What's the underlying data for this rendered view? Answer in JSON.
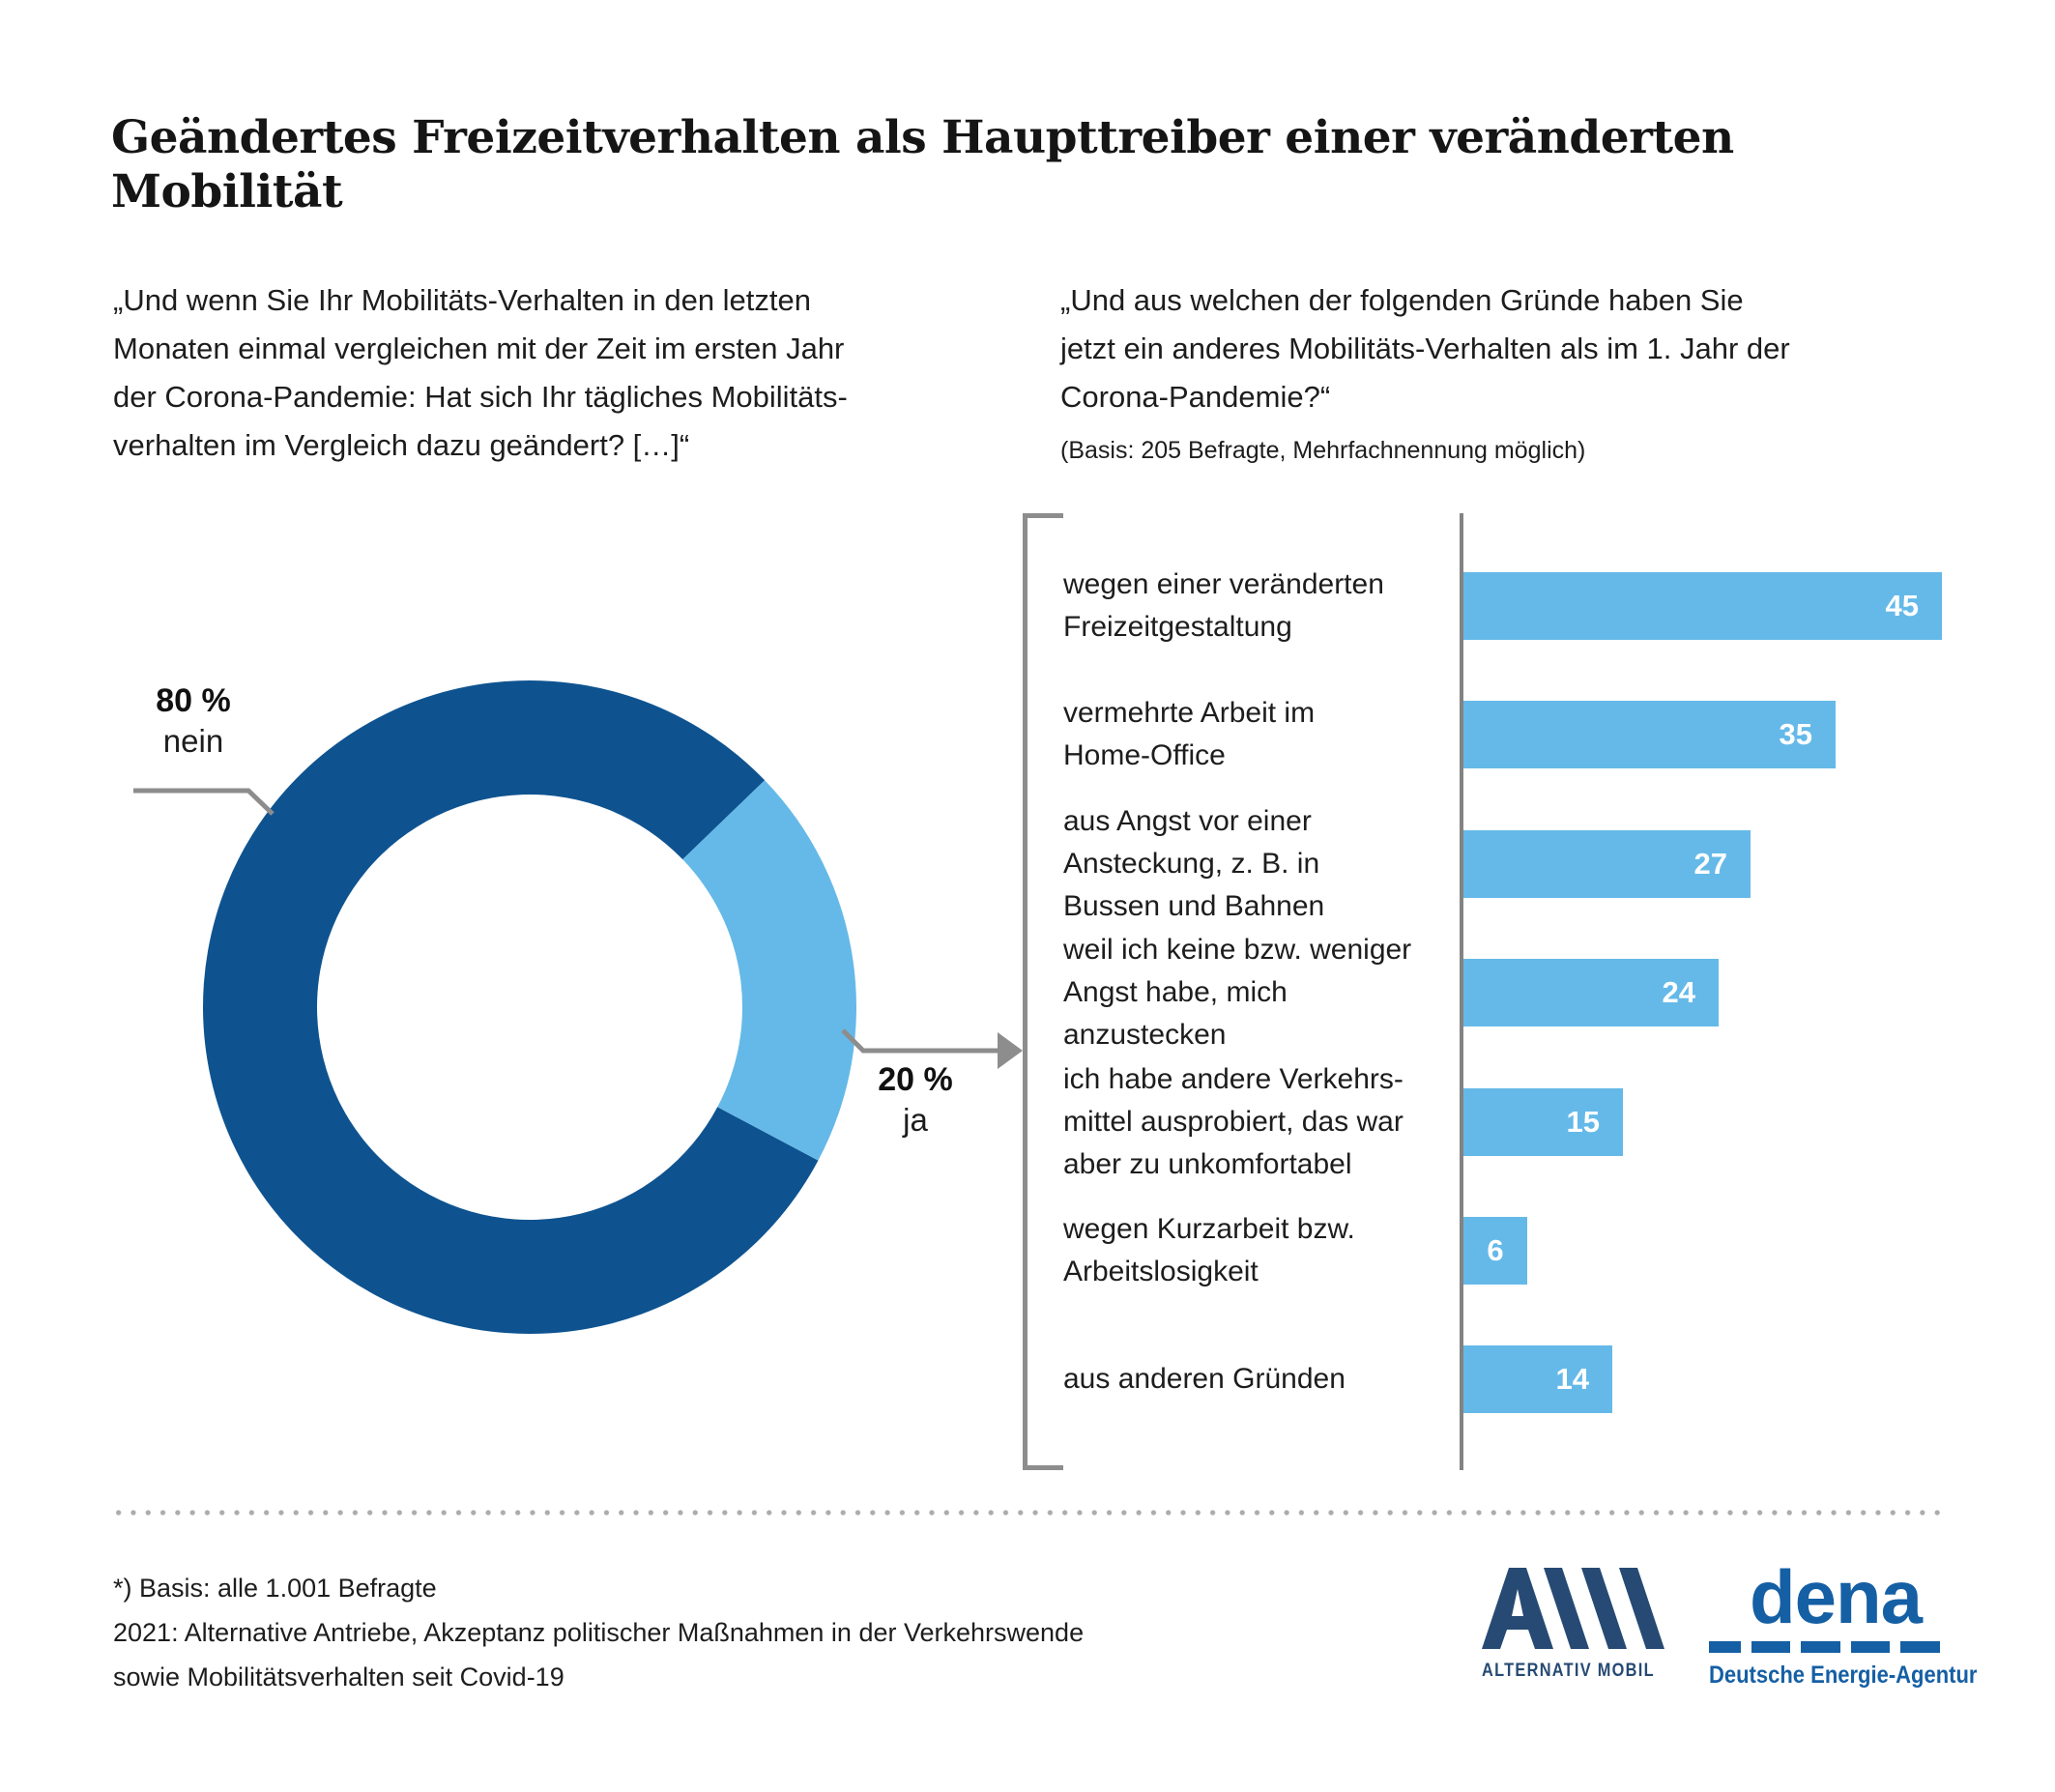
{
  "page": {
    "title": "Geändertes Freizeitverhalten als Haupttreiber einer veränderten\nMobilität"
  },
  "left_panel": {
    "question": "„Und wenn Sie Ihr Mobilitäts-Verhalten in den letzten\nMonaten einmal vergleichen mit der Zeit im ersten Jahr\nder Corona-Pandemie: Hat sich Ihr tägliches Mobilitäts-\nverhalten im Vergleich dazu geändert? […]“"
  },
  "right_panel": {
    "question": "„Und aus welchen der folgenden Gründe haben Sie\njetzt ein anderes Mobilitäts-Verhalten als im 1. Jahr der\nCorona-Pandemie?“",
    "basis_note": "(Basis: 205 Befragte, Mehrfachnennung möglich)"
  },
  "chart_data": [
    {
      "type": "pie",
      "subtype": "donut",
      "labels": [
        "nein",
        "ja"
      ],
      "values": [
        80,
        20
      ],
      "value_labels": [
        "80 %",
        "20 %"
      ],
      "colors": [
        "#0e5390",
        "#65b9e8"
      ],
      "start_angle_deg": 28,
      "legend_position": "callouts"
    },
    {
      "type": "bar",
      "orientation": "horizontal",
      "categories": [
        "wegen einer veränderten\nFreizeitgestaltung",
        "vermehrte Arbeit im\nHome-Office",
        "aus Angst vor einer\nAnsteckung, z. B. in\nBussen und Bahnen",
        "weil ich keine bzw. weniger\nAngst habe, mich anzustecken",
        "ich habe andere Verkehrs-\nmittel ausprobiert, das war\naber zu unkomfortabel",
        "wegen Kurzarbeit bzw.\nArbeitslosigkeit",
        "aus anderen Gründen"
      ],
      "values": [
        45,
        35,
        27,
        24,
        15,
        6,
        14
      ],
      "bar_color": "#65b9e8",
      "value_label_color": "#ffffff",
      "xlim": [
        0,
        47
      ],
      "grid": false,
      "axis_color": "#838383"
    }
  ],
  "footer": {
    "source": "*) Basis: alle 1.001 Befragte\n2021: Alternative Antriebe, Akzeptanz politischer Maßnahmen in der Verkehrswende\nsowie Mobilitätsverhalten seit Covid-19",
    "logos": {
      "am_caption": "ALTERNATIV MOBIL",
      "am_color": "#264a73",
      "dena_wordmark": "dena",
      "dena_caption": "Deutsche Energie-Agentur",
      "dena_color": "#155fa4"
    }
  }
}
